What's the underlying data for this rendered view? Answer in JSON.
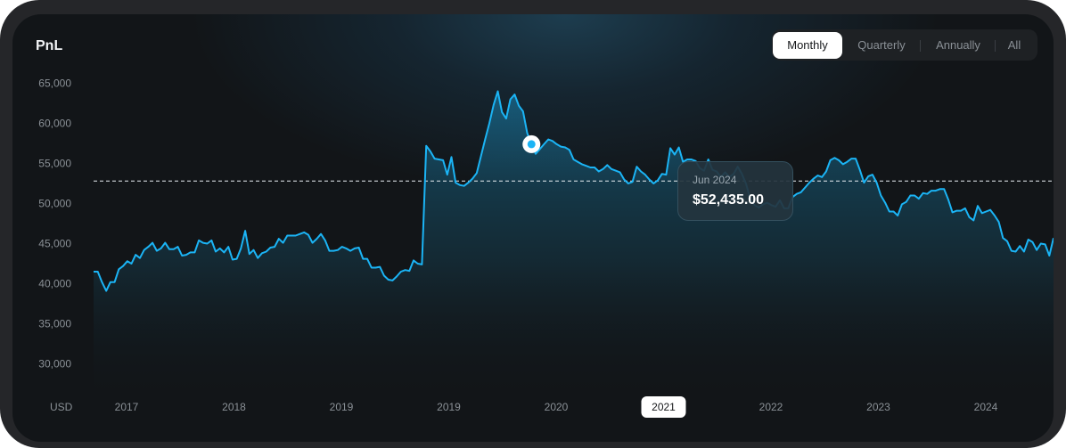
{
  "header": {
    "title": "PnL"
  },
  "periods": {
    "options": [
      "Monthly",
      "Quarterly",
      "Annually",
      "All"
    ],
    "selected": "Monthly"
  },
  "tooltip": {
    "date": "Jun 2024",
    "value": "$52,435.00"
  },
  "colors": {
    "line": "#1bb4f5",
    "accent_marker": "#1bb4f5",
    "active_pill": "#ffffff"
  },
  "chart_data": {
    "type": "area",
    "title": "PnL",
    "ylabel": "USD",
    "ylim": [
      27500,
      67500
    ],
    "y_ticks": [
      30000,
      35000,
      40000,
      45000,
      50000,
      55000,
      60000,
      65000
    ],
    "y_tick_labels": [
      "30,000",
      "35,000",
      "40,000",
      "45,000",
      "50,000",
      "55,000",
      "60,000",
      "65,000"
    ],
    "x_tick_labels": [
      "2017",
      "2018",
      "2019",
      "2019",
      "2020",
      "2021",
      "2022",
      "2023",
      "2024"
    ],
    "highlighted_x_label": "2021",
    "reference_line_value": 52800,
    "highlight_index": 104,
    "series": [
      {
        "values": [
          41500,
          41500,
          40200,
          39100,
          40200,
          40200,
          41800,
          42200,
          42800,
          42500,
          43600,
          43200,
          44200,
          44600,
          45100,
          44100,
          44400,
          45100,
          44300,
          44300,
          44600,
          43500,
          43600,
          43900,
          43900,
          45400,
          45100,
          45000,
          45400,
          44000,
          44400,
          43900,
          44600,
          43000,
          43100,
          44400,
          46600,
          43700,
          44200,
          43200,
          43800,
          44000,
          44500,
          44600,
          45600,
          45100,
          46000,
          46000,
          46000,
          46200,
          46400,
          46100,
          45100,
          45600,
          46200,
          45400,
          44100,
          44100,
          44200,
          44600,
          44400,
          44100,
          44400,
          44500,
          43100,
          43100,
          42000,
          42000,
          42100,
          41000,
          40500,
          40400,
          40900,
          41500,
          41700,
          41600,
          42900,
          42500,
          42400,
          57200,
          56500,
          55600,
          55500,
          55400,
          53600,
          55800,
          52600,
          52300,
          52200,
          52600,
          53100,
          53800,
          55900,
          58000,
          60000,
          62300,
          64000,
          61400,
          60600,
          63000,
          63600,
          62200,
          61500,
          58800,
          57400,
          56200,
          56800,
          57400,
          58000,
          57800,
          57400,
          57100,
          57000,
          56700,
          55500,
          55200,
          54900,
          54700,
          54500,
          54500,
          54000,
          54300,
          54800,
          54300,
          54100,
          53900,
          53000,
          52500,
          52700,
          54600,
          54000,
          53600,
          53000,
          52500,
          52900,
          53700,
          53600,
          56900,
          56100,
          57000,
          55200,
          55500,
          55500,
          55300,
          54400,
          54100,
          55500,
          54200,
          54000,
          53300,
          53900,
          53300,
          53700,
          54600,
          53700,
          52400,
          50500,
          49800,
          49500,
          49900,
          50100,
          49800,
          49600,
          50400,
          49400,
          49400,
          50800,
          51200,
          51400,
          52000,
          52600,
          53100,
          53500,
          53300,
          54000,
          55400,
          55700,
          55400,
          54900,
          55200,
          55600,
          55600,
          54200,
          52600,
          53400,
          53600,
          52600,
          51000,
          50100,
          49000,
          49000,
          48500,
          49900,
          50200,
          51000,
          51000,
          50600,
          51300,
          51200,
          51600,
          51600,
          51800,
          51800,
          50500,
          48900,
          49100,
          49100,
          49400,
          48300,
          47900,
          49700,
          48800,
          49000,
          49200,
          48500,
          47700,
          45700,
          45300,
          44100,
          44000,
          44700,
          44000,
          45500,
          45200,
          44200,
          45000,
          44900,
          43500,
          45700
        ]
      }
    ]
  }
}
